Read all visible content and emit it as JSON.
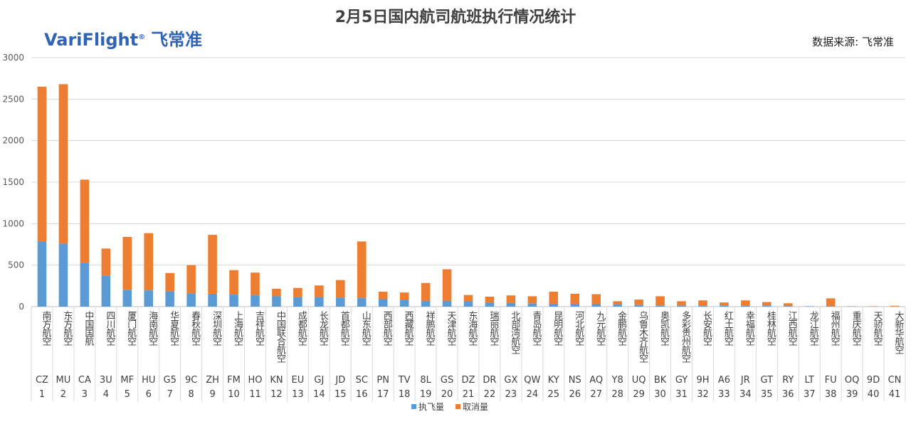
{
  "header": {
    "logo_text": "VariFlight",
    "logo_mark": "®",
    "logo_cn": "飞常准",
    "source_label": "数据来源: 飞常准"
  },
  "colors": {
    "flown": "#5b9bd5",
    "cancelled": "#ed7d31",
    "grid": "#d9d9d9",
    "axis": "#bfbfbf"
  },
  "chart_data": {
    "type": "bar",
    "stacked": true,
    "title": "2月5日国内航司航班执行情况统计",
    "xlabel": "",
    "ylabel": "",
    "ylim": [
      0,
      3000
    ],
    "yticks": [
      0,
      500,
      1000,
      1500,
      2000,
      2500,
      3000
    ],
    "grid": true,
    "legend": "bottom",
    "categories": [
      "南方航空",
      "东方航空",
      "中国国航",
      "四川航空",
      "厦门航空",
      "海南航空",
      "华夏航空",
      "春秋航空",
      "深圳航空",
      "上海航空",
      "吉祥航空",
      "中国联合航空",
      "成都航空",
      "长龙航空",
      "首都航空",
      "山东航空",
      "西部航空",
      "西藏航空",
      "祥鹏航空",
      "天津航空",
      "东海航空",
      "瑞丽航空",
      "北部湾航空",
      "青岛航空",
      "昆明航空",
      "河北航空",
      "九元航空",
      "金鹏航空",
      "乌鲁木齐航空",
      "奥凯航空",
      "多彩贵州航空",
      "长安航空",
      "红土航空",
      "幸福航空",
      "桂林航空",
      "江西航空",
      "龙江航空",
      "福州航空",
      "重庆航空",
      "天骄航空",
      "大新华航空"
    ],
    "codes": [
      "CZ",
      "MU",
      "CA",
      "3U",
      "MF",
      "HU",
      "G5",
      "9C",
      "ZH",
      "FM",
      "HO",
      "KN",
      "EU",
      "GJ",
      "JD",
      "SC",
      "PN",
      "TV",
      "8L",
      "GS",
      "DZ",
      "DR",
      "GX",
      "QW",
      "KY",
      "NS",
      "AQ",
      "Y8",
      "UQ",
      "BK",
      "GY",
      "9H",
      "A6",
      "JR",
      "GT",
      "RY",
      "LT",
      "FU",
      "OQ",
      "9D",
      "CN"
    ],
    "ranks": [
      "1",
      "2",
      "3",
      "4",
      "5",
      "6",
      "7",
      "8",
      "9",
      "10",
      "11",
      "12",
      "13",
      "14",
      "15",
      "16",
      "17",
      "18",
      "19",
      "20",
      "21",
      "22",
      "23",
      "24",
      "25",
      "26",
      "27",
      "28",
      "29",
      "30",
      "31",
      "32",
      "33",
      "34",
      "35",
      "36",
      "37",
      "38",
      "39",
      "40",
      "41"
    ],
    "series": [
      {
        "name": "执飞量",
        "values": [
          780,
          760,
          530,
          370,
          200,
          195,
          185,
          160,
          155,
          145,
          140,
          125,
          115,
          115,
          110,
          105,
          90,
          85,
          70,
          70,
          60,
          50,
          45,
          40,
          35,
          35,
          30,
          25,
          20,
          15,
          15,
          10,
          10,
          10,
          10,
          8,
          5,
          5,
          3,
          2,
          2
        ]
      },
      {
        "name": "取消量",
        "values": [
          1870,
          1920,
          1000,
          330,
          640,
          690,
          220,
          340,
          710,
          295,
          270,
          90,
          110,
          140,
          210,
          680,
          90,
          85,
          215,
          380,
          80,
          70,
          90,
          85,
          145,
          120,
          120,
          40,
          65,
          110,
          50,
          65,
          40,
          65,
          45,
          32,
          0,
          95,
          2,
          3,
          8
        ]
      }
    ]
  }
}
